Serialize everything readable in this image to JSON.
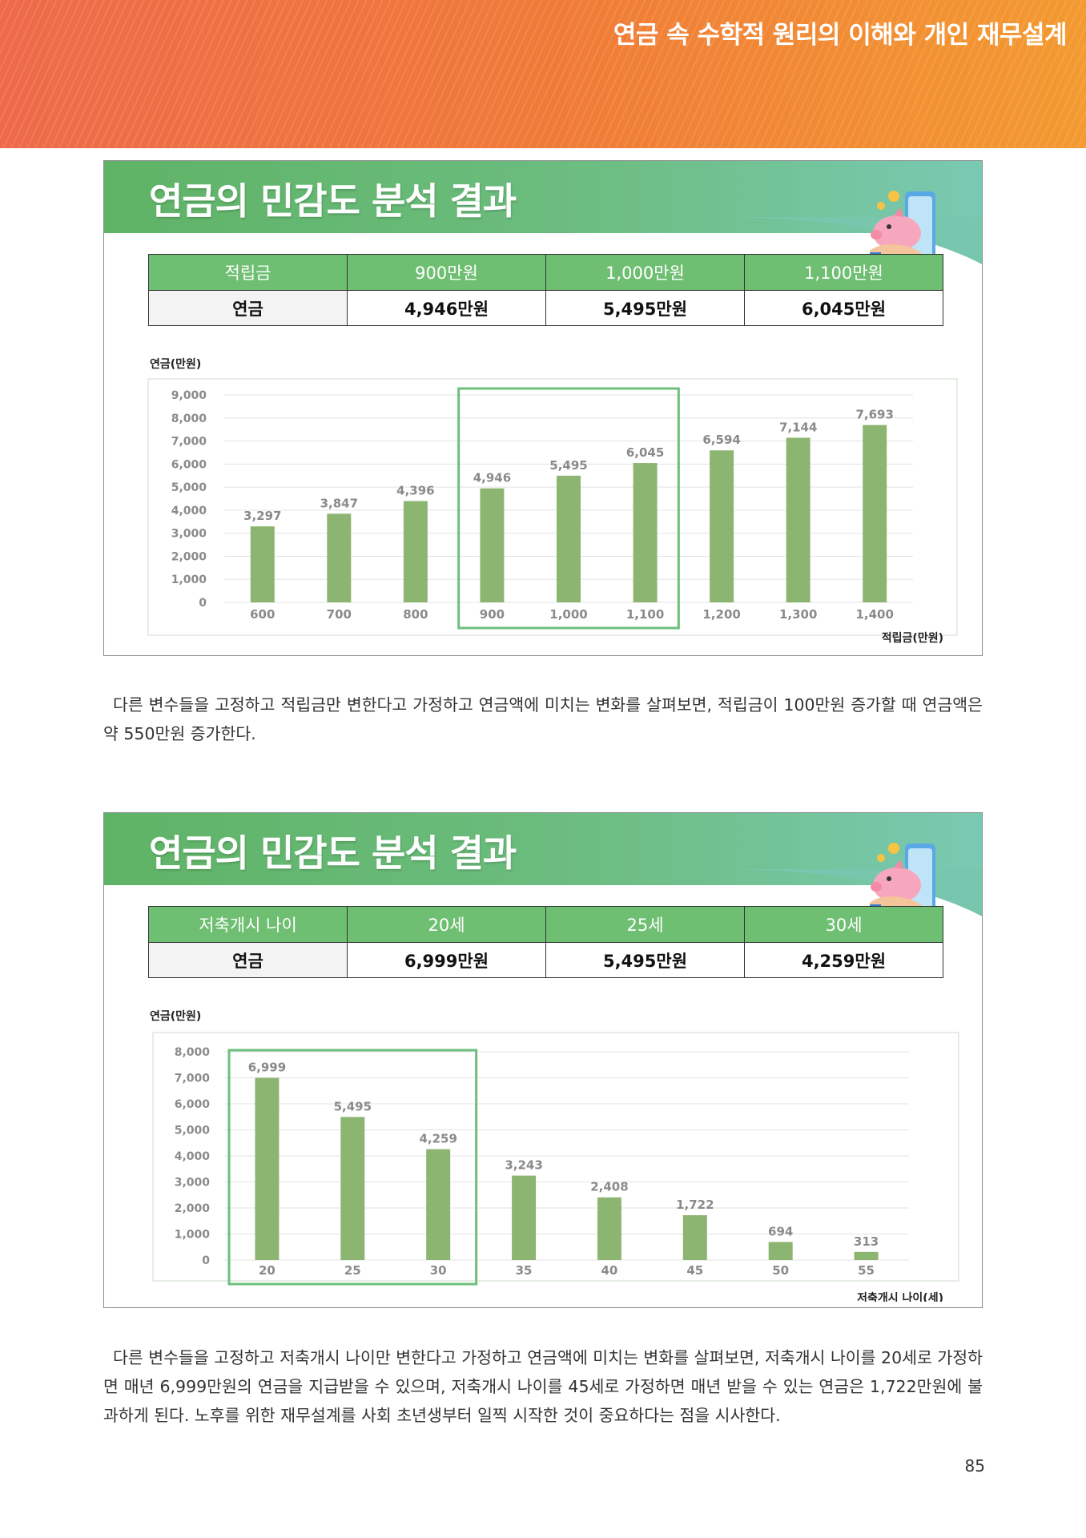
{
  "header": {
    "title": "연금 속 수학적 원리의 이해와 개인 재무설계"
  },
  "colors": {
    "banner_start": "#ee6a4a",
    "banner_end": "#f39a30",
    "card_green": "#5fb366",
    "table_head": "#6fbf72",
    "bar": "#8db572",
    "highlight_box": "#6dbf7c",
    "axis_text": "#8a8a8a"
  },
  "sections": [
    {
      "card_title": "연금의 민감도 분석 결과",
      "icon": "piggy-bank-hand-icon",
      "table": {
        "head": [
          "적립금",
          "900만원",
          "1,000만원",
          "1,100만원"
        ],
        "body": [
          "연금",
          "4,946만원",
          "5,495만원",
          "6,045만원"
        ]
      },
      "paragraph": "다른 변수들을 고정하고 적립금만 변한다고 가정하고 연금액에 미치는 변화를 살펴보면, 적립금이 100만원 증가할 때 연금액은 약 550만원 증가한다."
    },
    {
      "card_title": "연금의 민감도 분석 결과",
      "icon": "piggy-bank-hand-icon",
      "table": {
        "head": [
          "저축개시 나이",
          "20세",
          "25세",
          "30세"
        ],
        "body": [
          "연금",
          "6,999만원",
          "5,495만원",
          "4,259만원"
        ]
      },
      "paragraph": "다른 변수들을 고정하고 저축개시 나이만 변한다고 가정하고 연금액에 미치는 변화를 살펴보면, 저축개시 나이를 20세로 가정하면 매년 6,999만원의 연금을 지급받을 수 있으며, 저축개시 나이를 45세로 가정하면 매년 받을 수 있는 연금은 1,722만원에 불과하게 된다. 노후를 위한 재무설계를 사회 초년생부터 일찍 시작한 것이 중요하다는 점을 시사한다."
    }
  ],
  "chart_data": [
    {
      "type": "bar",
      "ylabel": "연금(만원)",
      "xlabel": "적립금(만원)",
      "categories": [
        "600",
        "700",
        "800",
        "900",
        "1,000",
        "1,100",
        "1,200",
        "1,300",
        "1,400"
      ],
      "values": [
        3297,
        3847,
        4396,
        4946,
        5495,
        6045,
        6594,
        7144,
        7693
      ],
      "value_labels": [
        "3,297",
        "3,847",
        "4,396",
        "4,946",
        "5,495",
        "6,045",
        "6,594",
        "7,144",
        "7,693"
      ],
      "yticks": [
        "0",
        "1,000",
        "2,000",
        "3,000",
        "4,000",
        "5,000",
        "6,000",
        "7,000",
        "8,000",
        "9,000"
      ],
      "ylim": [
        0,
        9000
      ],
      "grid": true,
      "legend": "none",
      "highlight": [
        "900",
        "1,000",
        "1,100"
      ]
    },
    {
      "type": "bar",
      "ylabel": "연금(만원)",
      "xlabel": "저축개시 나이(세)",
      "categories": [
        "20",
        "25",
        "30",
        "35",
        "40",
        "45",
        "50",
        "55"
      ],
      "values": [
        6999,
        5495,
        4259,
        3243,
        2408,
        1722,
        694,
        313
      ],
      "value_labels": [
        "6,999",
        "5,495",
        "4,259",
        "3,243",
        "2,408",
        "1,722",
        "694",
        "313"
      ],
      "yticks": [
        "0",
        "1,000",
        "2,000",
        "3,000",
        "4,000",
        "5,000",
        "6,000",
        "7,000",
        "8,000"
      ],
      "ylim": [
        0,
        8000
      ],
      "grid": true,
      "legend": "none",
      "highlight": [
        "20",
        "25",
        "30"
      ]
    }
  ],
  "footer": {
    "page_number": "85"
  }
}
